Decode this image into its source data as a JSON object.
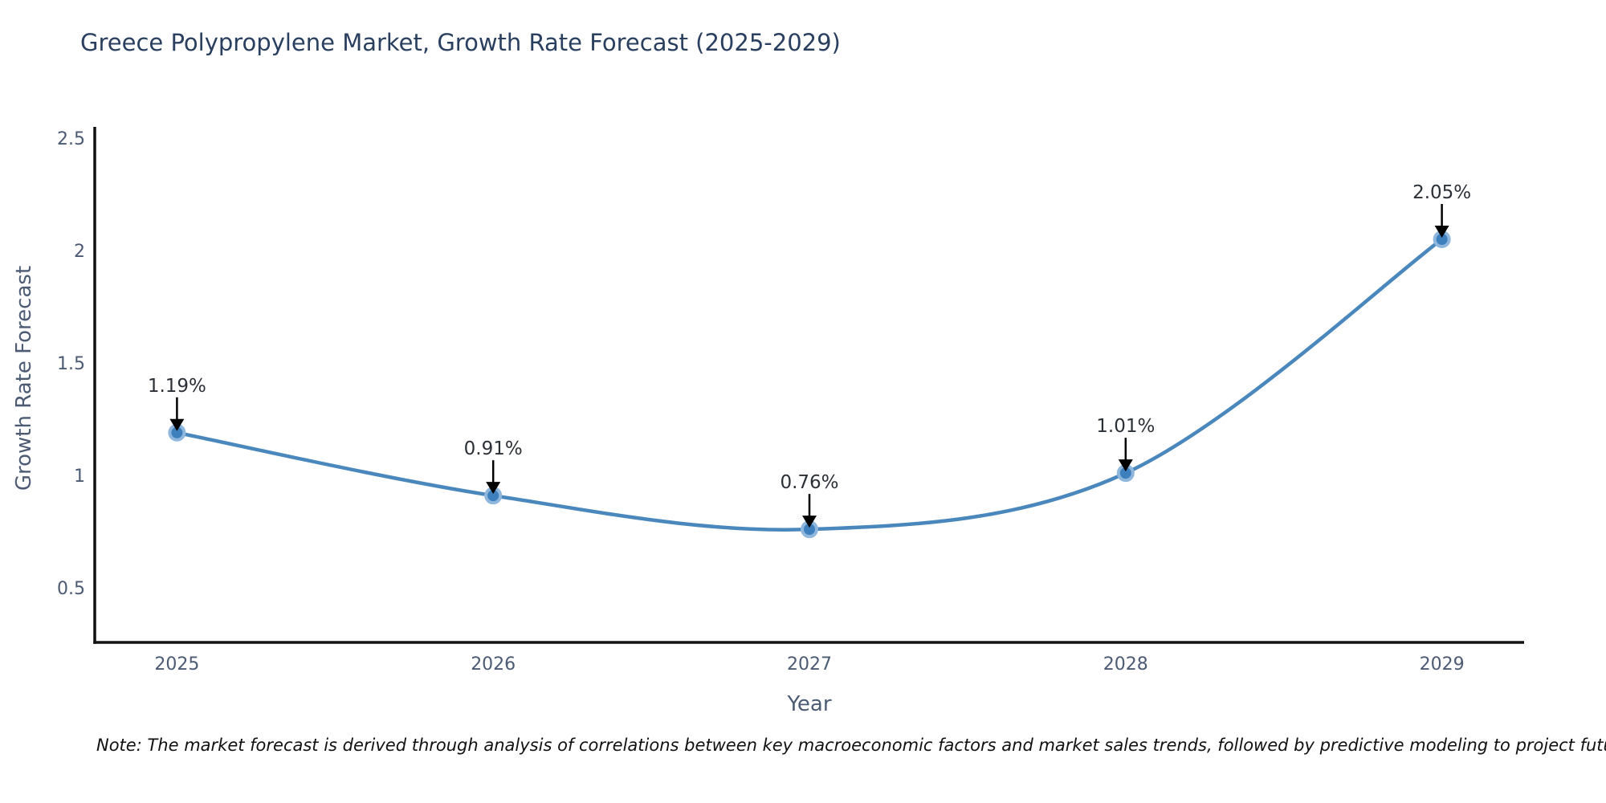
{
  "title": "Greece Polypropylene Market, Growth Rate Forecast (2025-2029)",
  "note": "Note: The market forecast is derived through analysis of correlations between key macroeconomic factors and market sales trends, followed by predictive modeling to project future sales",
  "chart_data": {
    "type": "line",
    "title": "Greece Polypropylene Market, Growth Rate Forecast (2025-2029)",
    "xlabel": "Year",
    "ylabel": "Growth Rate Forecast",
    "x": [
      2025,
      2026,
      2027,
      2028,
      2029
    ],
    "values": [
      1.19,
      0.91,
      0.76,
      1.01,
      2.05
    ],
    "point_labels": [
      "1.19%",
      "0.91%",
      "0.76%",
      "1.01%",
      "2.05%"
    ],
    "xtick_labels": [
      "2025",
      "2026",
      "2027",
      "2028",
      "2029"
    ],
    "ytick_values": [
      0.5,
      1,
      1.5,
      2,
      2.5
    ],
    "ytick_labels": [
      "0.5",
      "1",
      "1.5",
      "2",
      "2.5"
    ],
    "xlim": [
      2024.74,
      2029.26
    ],
    "ylim": [
      0.257,
      2.55
    ],
    "grid": false,
    "legend": "none",
    "line_shape": "spline",
    "marker_style": "circle-with-light-ring",
    "annotation_style": "value-label-with-down-arrow",
    "colors": {
      "line": "#4a87bd",
      "marker_fill": "#3e7fbe",
      "marker_ring": "#8fb6dc",
      "axis_line": "#111111",
      "tick_text": "#4c5a74",
      "annotation_text": "#2b2f36",
      "arrow": "#000000",
      "title_text": "#2a3f5f",
      "background": "#ffffff"
    }
  }
}
